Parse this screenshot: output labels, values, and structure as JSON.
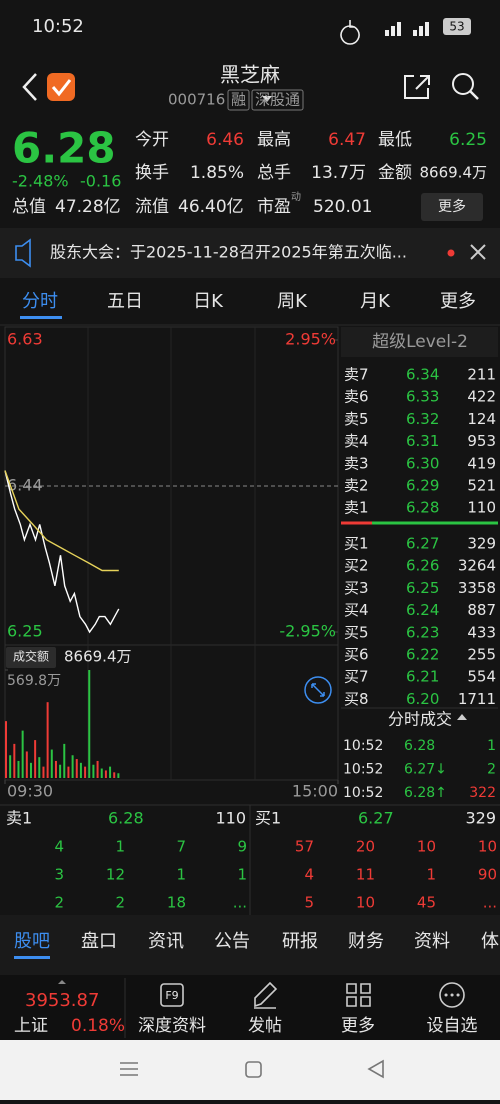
{
  "status": {
    "time": "10:52",
    "battery": "53"
  },
  "header": {
    "title": "黑芝麻",
    "code": "000716",
    "tags": [
      "融",
      "深股通"
    ]
  },
  "quote": {
    "price": "6.28",
    "change_pct": "-2.48%",
    "change": "-0.16",
    "fields": [
      [
        "今开",
        "6.46"
      ],
      [
        "最高",
        "6.47"
      ],
      [
        "最低",
        "6.25"
      ],
      [
        "换手",
        "1.85%"
      ],
      [
        "总手",
        "13.7万"
      ],
      [
        "金额",
        "8669.4万"
      ],
      [
        "总值",
        "47.28亿"
      ],
      [
        "流值",
        "46.40亿"
      ],
      [
        "市盈",
        "520.01"
      ]
    ],
    "pe_mark": "动",
    "more": "更多"
  },
  "notice": "股东大会：于2025-11-28召开2025年第五次临...",
  "tabs": [
    "分时",
    "五日",
    "日K",
    "周K",
    "月K",
    "更多"
  ],
  "chart_data": {
    "type": "line",
    "xlim": [
      0,
      240
    ],
    "xticks": [
      {
        "value": 0,
        "label": "09:30"
      },
      {
        "value": 240,
        "label": "15:00"
      }
    ],
    "ylim": [
      6.25,
      6.63
    ],
    "yticks": [
      6.25,
      6.44,
      6.63
    ],
    "y2lim": [
      -2.95,
      2.95
    ],
    "y2ticks": [
      {
        "value": 2.95,
        "label": "2.95%"
      },
      {
        "value": -2.95,
        "label": "-2.95%"
      }
    ],
    "series": [
      {
        "color": "#ffffff",
        "x": [
          0,
          4,
          7,
          11,
          14,
          18,
          22,
          25,
          29,
          32,
          36,
          40,
          43,
          47,
          50,
          54,
          58,
          61,
          65,
          68,
          72,
          76,
          79,
          82
        ],
        "values": [
          6.46,
          6.43,
          6.41,
          6.39,
          6.37,
          6.39,
          6.37,
          6.39,
          6.36,
          6.34,
          6.31,
          6.35,
          6.31,
          6.29,
          6.3,
          6.27,
          6.26,
          6.25,
          6.26,
          6.27,
          6.27,
          6.26,
          6.27,
          6.28
        ]
      },
      {
        "color": "#e6d25a",
        "x": [
          0,
          10,
          20,
          30,
          40,
          50,
          60,
          70,
          82
        ],
        "values": [
          6.46,
          6.41,
          6.39,
          6.37,
          6.36,
          6.35,
          6.34,
          6.33,
          6.33
        ]
      }
    ],
    "volume": {
      "label": "成交额",
      "total": "8669.4万",
      "ylim": [
        0,
        569.8
      ],
      "yticks": [
        {
          "value": 569.8,
          "label": "569.8万"
        }
      ],
      "x": [
        0,
        3,
        6,
        9,
        12,
        15,
        18,
        21,
        24,
        27,
        30,
        33,
        36,
        39,
        42,
        45,
        48,
        51,
        54,
        57,
        60,
        63,
        66,
        69,
        72,
        75,
        78,
        81
      ],
      "values": [
        300,
        120,
        180,
        90,
        250,
        140,
        80,
        200,
        110,
        60,
        400,
        150,
        90,
        70,
        180,
        60,
        120,
        100,
        80,
        60,
        569.8,
        70,
        90,
        50,
        40,
        60,
        30,
        25
      ],
      "colors": [
        "#ef3b36",
        "#2bc443",
        "#ef3b36",
        "#2bc443",
        "#2bc443",
        "#ef3b36",
        "#2bc443",
        "#ef3b36",
        "#2bc443",
        "#ef3b36",
        "#ef3b36",
        "#2bc443",
        "#ef3b36",
        "#2bc443",
        "#2bc443",
        "#ef3b36",
        "#2bc443",
        "#ef3b36",
        "#2bc443",
        "#ef3b36",
        "#2bc443",
        "#2bc443",
        "#ef3b36",
        "#2bc443",
        "#ef3b36",
        "#2bc443",
        "#ef3b36",
        "#2bc443"
      ]
    }
  },
  "level2": {
    "title": "超级Level-2",
    "asks": [
      [
        "卖7",
        "6.34",
        "211"
      ],
      [
        "卖6",
        "6.33",
        "422"
      ],
      [
        "卖5",
        "6.32",
        "124"
      ],
      [
        "卖4",
        "6.31",
        "953"
      ],
      [
        "卖3",
        "6.30",
        "419"
      ],
      [
        "卖2",
        "6.29",
        "521"
      ],
      [
        "卖1",
        "6.28",
        "110"
      ]
    ],
    "bids": [
      [
        "买1",
        "6.27",
        "329"
      ],
      [
        "买2",
        "6.26",
        "3264"
      ],
      [
        "买3",
        "6.25",
        "3358"
      ],
      [
        "买4",
        "6.24",
        "887"
      ],
      [
        "买5",
        "6.23",
        "433"
      ],
      [
        "买6",
        "6.22",
        "255"
      ],
      [
        "买7",
        "6.21",
        "554"
      ],
      [
        "买8",
        "6.20",
        "1711"
      ]
    ]
  },
  "trades": {
    "title": "分时成交",
    "rows": [
      [
        "10:52",
        "6.28",
        "1"
      ],
      [
        "10:52",
        "6.27↓",
        "2"
      ],
      [
        "10:52",
        "6.28↑",
        "322"
      ]
    ]
  },
  "depth": {
    "ask": [
      "卖1",
      "6.28",
      "110"
    ],
    "bid": [
      "买1",
      "6.27",
      "329"
    ],
    "ask_queue": [
      [
        "4",
        "1",
        "7",
        "9"
      ],
      [
        "3",
        "12",
        "1",
        "1"
      ],
      [
        "2",
        "2",
        "18",
        "..."
      ]
    ],
    "bid_queue": [
      [
        "57",
        "20",
        "10",
        "10"
      ],
      [
        "4",
        "11",
        "1",
        "90"
      ],
      [
        "5",
        "10",
        "45",
        "..."
      ]
    ]
  },
  "bottom_tabs": [
    "股吧",
    "盘口",
    "资讯",
    "公告",
    "研报",
    "财务",
    "资料",
    "体"
  ],
  "footer": {
    "index": "3953.87",
    "name": "上证",
    "pct": "0.18%",
    "icon": "F9",
    "buttons": [
      "深度资料",
      "发帖",
      "更多",
      "设自选"
    ]
  }
}
